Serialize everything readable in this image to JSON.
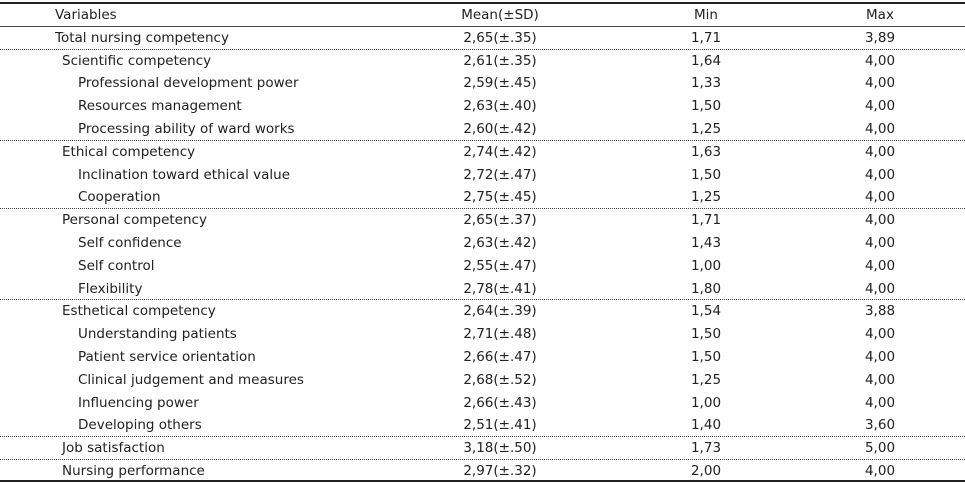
{
  "table": {
    "header": [
      "Variables",
      "Mean(±SD)",
      "Min",
      "Max"
    ],
    "rows": [
      [
        "Total nursing competency",
        "2,65(±.35)",
        "1,71",
        "3,89"
      ],
      [
        "Scientific competency",
        "2,61(±.35)",
        "1,64",
        "4,00"
      ],
      [
        "Professional development power",
        "2,59(±.45)",
        "1,33",
        "4,00"
      ],
      [
        "Resources management",
        "2,63(±.40)",
        "1,50",
        "4,00"
      ],
      [
        "Processing ability of ward works",
        "2,60(±.42)",
        "1,25",
        "4,00"
      ],
      [
        "Ethical competency",
        "2,74(±.42)",
        "1,63",
        "4,00"
      ],
      [
        "Inclination toward ethical value",
        "2,72(±.47)",
        "1,50",
        "4,00"
      ],
      [
        "Cooperation",
        "2,75(±.45)",
        "1,25",
        "4,00"
      ],
      [
        "Personal competency",
        "2,65(±.37)",
        "1,71",
        "4,00"
      ],
      [
        "Self confidence",
        "2,63(±.42)",
        "1,43",
        "4,00"
      ],
      [
        "Self control",
        "2,55(±.47)",
        "1,00",
        "4,00"
      ],
      [
        "Flexibility",
        "2,78(±.41)",
        "1,80",
        "4,00"
      ],
      [
        "Esthetical competency",
        "2,64(±.39)",
        "1,54",
        "3,88"
      ],
      [
        "Understanding patients",
        "2,71(±.48)",
        "1,50",
        "4,00"
      ],
      [
        "Patient service orientation",
        "2,66(±.47)",
        "1,50",
        "4,00"
      ],
      [
        "Clinical judgement and measures",
        "2,68(±.52)",
        "1,25",
        "4,00"
      ],
      [
        "Influencing power",
        "2,66(±.43)",
        "1,00",
        "4,00"
      ],
      [
        "Developing others",
        "2,51(±.41)",
        "1,40",
        "3,60"
      ],
      [
        "Job satisfaction",
        "3,18(±.50)",
        "1,73",
        "5,00"
      ],
      [
        "Nursing performance",
        "2,97(±.32)",
        "2,00",
        "4,00"
      ]
    ]
  }
}
